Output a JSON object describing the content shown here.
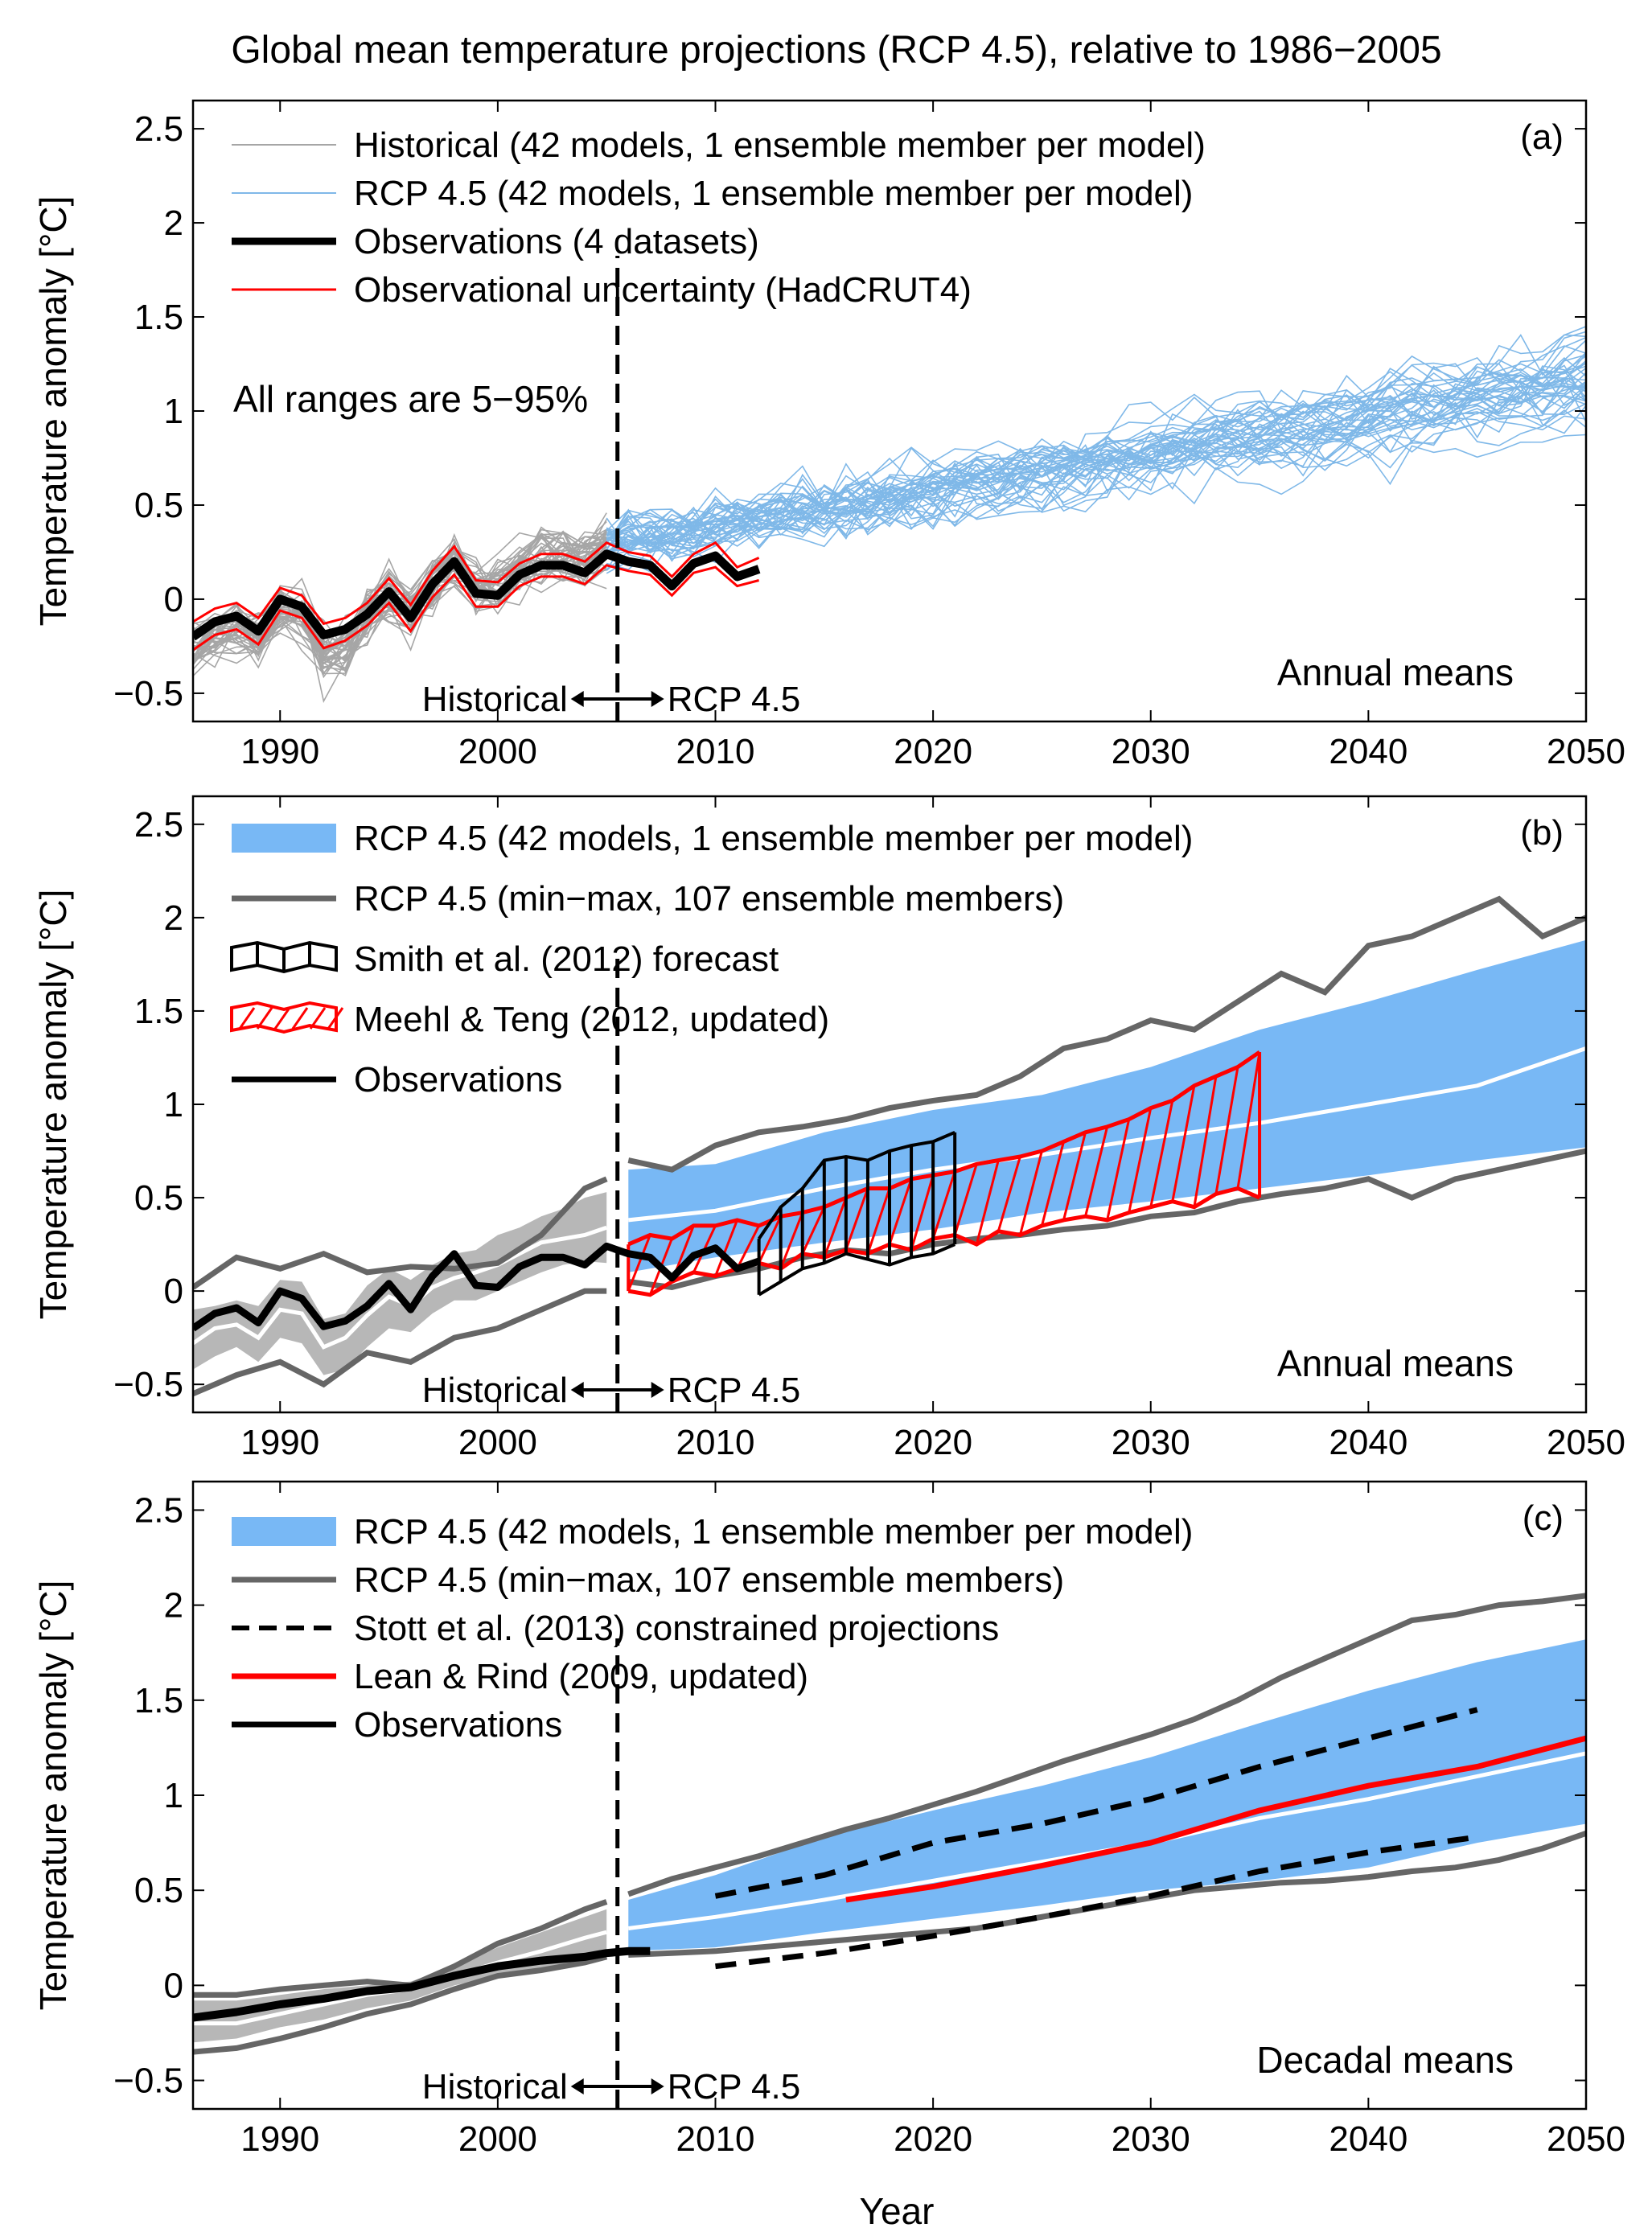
{
  "figure": {
    "title": "Global mean temperature projections (RCP 4.5), relative to 1986−2005",
    "xlabel": "Year"
  },
  "colors": {
    "historical_model": "#a6a6a6",
    "rcp_model": "#7fb8e8",
    "rcp_band": "#78b8f5",
    "hist_band": "#b7b7b7",
    "minmax": "#666666",
    "observations": "#000000",
    "obs_uncertainty": "#ff0000",
    "meehl": "#ff0000",
    "smith": "#000000",
    "lean_rind": "#ff0000",
    "median": "#ffffff"
  },
  "chart_data": [
    {
      "id": "a",
      "type": "line",
      "panel_label": "(a)",
      "ylabel": "Temperature anomaly  [°C]",
      "xlim": [
        1986,
        2050
      ],
      "ylim": [
        -0.65,
        2.65
      ],
      "x_ticks": [
        1990,
        2000,
        2010,
        2020,
        2030,
        2040,
        2050
      ],
      "y_ticks": [
        -0.5,
        0,
        0.5,
        1,
        1.5,
        2,
        2.5
      ],
      "y_tick_labels": [
        "−0.5",
        "0",
        "0.5",
        "1",
        "1.5",
        "2",
        "2.5"
      ],
      "legend": [
        {
          "label": "Historical (42 models, 1 ensemble member per model)",
          "style": "hist-thin"
        },
        {
          "label": "RCP 4.5 (42 models, 1 ensemble member per model)",
          "style": "rcp-thin"
        },
        {
          "label": "Observations (4 datasets)",
          "style": "obs-thick"
        },
        {
          "label": "Observational uncertainty (HadCRUT4)",
          "style": "red-thin"
        }
      ],
      "legend_position": "top-left",
      "note": "All ranges are 5−95%",
      "corner_label": "Annual means",
      "divider": {
        "year": 2005.5,
        "left_label": "Historical",
        "right_label": "RCP 4.5"
      },
      "ensemble": {
        "historical_count": 42,
        "historical_years": [
          1986,
          2005
        ],
        "rcp_count": 42,
        "rcp_years": [
          2005,
          2050
        ]
      },
      "observations": {
        "years": [
          1986,
          1987,
          1988,
          1989,
          1990,
          1991,
          1992,
          1993,
          1994,
          1995,
          1996,
          1997,
          1998,
          1999,
          2000,
          2001,
          2002,
          2003,
          2004,
          2005,
          2006,
          2007,
          2008,
          2009,
          2010,
          2011,
          2012
        ],
        "values": [
          -0.2,
          -0.12,
          -0.09,
          -0.17,
          0.0,
          -0.04,
          -0.19,
          -0.16,
          -0.08,
          0.04,
          -0.1,
          0.08,
          0.2,
          0.03,
          0.02,
          0.13,
          0.18,
          0.18,
          0.14,
          0.24,
          0.2,
          0.18,
          0.07,
          0.19,
          0.23,
          0.12,
          0.16
        ]
      },
      "obs_uncertainty": {
        "upper": [
          -0.12,
          -0.05,
          -0.02,
          -0.1,
          0.06,
          0.02,
          -0.13,
          -0.1,
          -0.02,
          0.11,
          -0.03,
          0.15,
          0.28,
          0.1,
          0.09,
          0.19,
          0.24,
          0.24,
          0.2,
          0.3,
          0.25,
          0.23,
          0.12,
          0.24,
          0.3,
          0.17,
          0.22
        ],
        "lower": [
          -0.27,
          -0.19,
          -0.16,
          -0.24,
          -0.06,
          -0.1,
          -0.26,
          -0.22,
          -0.14,
          -0.02,
          -0.17,
          0.01,
          0.13,
          -0.04,
          -0.04,
          0.07,
          0.12,
          0.12,
          0.08,
          0.18,
          0.15,
          0.13,
          0.02,
          0.14,
          0.17,
          0.07,
          0.1
        ]
      }
    },
    {
      "id": "b",
      "type": "area",
      "panel_label": "(b)",
      "ylabel": "Temperature anomaly  [°C]",
      "xlim": [
        1986,
        2050
      ],
      "ylim": [
        -0.65,
        2.65
      ],
      "x_ticks": [
        1990,
        2000,
        2010,
        2020,
        2030,
        2040,
        2050
      ],
      "y_ticks": [
        -0.5,
        0,
        0.5,
        1,
        1.5,
        2,
        2.5
      ],
      "y_tick_labels": [
        "−0.5",
        "0",
        "0.5",
        "1",
        "1.5",
        "2",
        "2.5"
      ],
      "legend": [
        {
          "label": "RCP 4.5 (42 models, 1 ensemble member per model)",
          "style": "blue-band"
        },
        {
          "label": "RCP 4.5 (min−max, 107 ensemble members)",
          "style": "grey-thick"
        },
        {
          "label": "Smith et al. (2012) forecast",
          "style": "black-hatch"
        },
        {
          "label": "Meehl & Teng (2012, updated)",
          "style": "red-hatch"
        },
        {
          "label": "Observations",
          "style": "black-line"
        }
      ],
      "legend_position": "top-left",
      "corner_label": "Annual means",
      "divider": {
        "year": 2005.5,
        "left_label": "Historical",
        "right_label": "RCP 4.5"
      },
      "hist_band": {
        "years": [
          1986,
          1987,
          1988,
          1989,
          1990,
          1991,
          1992,
          1993,
          1994,
          1995,
          1996,
          1997,
          1998,
          1999,
          2000,
          2001,
          2002,
          2003,
          2004,
          2005
        ],
        "upper": [
          -0.1,
          -0.08,
          -0.05,
          -0.08,
          0.06,
          0.05,
          -0.15,
          -0.12,
          0.03,
          0.12,
          0.06,
          0.14,
          0.2,
          0.22,
          0.3,
          0.34,
          0.4,
          0.44,
          0.5,
          0.53
        ],
        "lower": [
          -0.42,
          -0.35,
          -0.3,
          -0.38,
          -0.25,
          -0.28,
          -0.45,
          -0.42,
          -0.3,
          -0.2,
          -0.22,
          -0.12,
          -0.05,
          -0.05,
          0.0,
          0.05,
          0.1,
          0.14,
          0.16,
          0.15
        ],
        "median": [
          -0.28,
          -0.2,
          -0.18,
          -0.25,
          -0.1,
          -0.12,
          -0.3,
          -0.25,
          -0.13,
          -0.03,
          -0.08,
          0.02,
          0.07,
          0.1,
          0.14,
          0.2,
          0.26,
          0.28,
          0.3,
          0.34
        ]
      },
      "rcp_band": {
        "years": [
          2006,
          2010,
          2015,
          2020,
          2025,
          2030,
          2035,
          2040,
          2045,
          2050
        ],
        "upper": [
          0.65,
          0.68,
          0.85,
          0.97,
          1.05,
          1.2,
          1.4,
          1.55,
          1.72,
          1.88
        ],
        "lower": [
          0.1,
          0.18,
          0.26,
          0.33,
          0.42,
          0.48,
          0.55,
          0.62,
          0.7,
          0.77
        ],
        "median": [
          0.38,
          0.43,
          0.55,
          0.65,
          0.73,
          0.82,
          0.9,
          1.0,
          1.1,
          1.3
        ]
      },
      "minmax": {
        "years": [
          1986,
          1988,
          1990,
          1992,
          1994,
          1996,
          1998,
          2000,
          2002,
          2004,
          2005,
          2006,
          2008,
          2010,
          2012,
          2014,
          2016,
          2018,
          2020,
          2022,
          2024,
          2026,
          2028,
          2030,
          2032,
          2034,
          2036,
          2038,
          2040,
          2042,
          2044,
          2046,
          2048,
          2050
        ],
        "upper": [
          0.02,
          0.18,
          0.12,
          0.2,
          0.1,
          0.13,
          0.12,
          0.15,
          0.3,
          0.55,
          0.6,
          0.7,
          0.65,
          0.78,
          0.85,
          0.88,
          0.92,
          0.98,
          1.02,
          1.05,
          1.15,
          1.3,
          1.35,
          1.45,
          1.4,
          1.55,
          1.7,
          1.6,
          1.85,
          1.9,
          2.0,
          2.1,
          1.9,
          2.0
        ],
        "lower": [
          -0.55,
          -0.45,
          -0.38,
          -0.5,
          -0.33,
          -0.38,
          -0.25,
          -0.2,
          -0.1,
          0.0,
          0.0,
          0.05,
          0.02,
          0.08,
          0.12,
          0.18,
          0.22,
          0.2,
          0.25,
          0.28,
          0.3,
          0.33,
          0.35,
          0.4,
          0.42,
          0.48,
          0.52,
          0.55,
          0.6,
          0.5,
          0.6,
          0.65,
          0.7,
          0.75
        ]
      },
      "observations": {
        "years": [
          1986,
          1987,
          1988,
          1989,
          1990,
          1991,
          1992,
          1993,
          1994,
          1995,
          1996,
          1997,
          1998,
          1999,
          2000,
          2001,
          2002,
          2003,
          2004,
          2005,
          2006,
          2007,
          2008,
          2009,
          2010,
          2011,
          2012
        ],
        "values": [
          -0.2,
          -0.12,
          -0.09,
          -0.17,
          0.0,
          -0.04,
          -0.19,
          -0.16,
          -0.08,
          0.04,
          -0.1,
          0.08,
          0.2,
          0.03,
          0.02,
          0.13,
          0.18,
          0.18,
          0.14,
          0.24,
          0.2,
          0.18,
          0.07,
          0.19,
          0.23,
          0.12,
          0.16
        ]
      },
      "smith": {
        "years": [
          2012,
          2013,
          2014,
          2015,
          2016,
          2017,
          2018,
          2019,
          2020,
          2021
        ],
        "upper": [
          0.28,
          0.45,
          0.55,
          0.7,
          0.72,
          0.7,
          0.75,
          0.78,
          0.8,
          0.85
        ],
        "lower": [
          -0.02,
          0.05,
          0.12,
          0.15,
          0.2,
          0.17,
          0.14,
          0.18,
          0.2,
          0.25
        ]
      },
      "meehl": {
        "years": [
          2006,
          2007,
          2008,
          2009,
          2010,
          2011,
          2012,
          2013,
          2014,
          2015,
          2016,
          2017,
          2018,
          2019,
          2020,
          2021,
          2022,
          2023,
          2024,
          2025,
          2026,
          2027,
          2028,
          2029,
          2030,
          2031,
          2032,
          2033,
          2034,
          2035
        ],
        "upper": [
          0.25,
          0.3,
          0.28,
          0.35,
          0.35,
          0.38,
          0.35,
          0.4,
          0.42,
          0.45,
          0.5,
          0.55,
          0.55,
          0.6,
          0.62,
          0.64,
          0.68,
          0.7,
          0.72,
          0.75,
          0.8,
          0.85,
          0.88,
          0.92,
          0.98,
          1.02,
          1.1,
          1.15,
          1.2,
          1.28
        ],
        "lower": [
          0.0,
          -0.02,
          0.05,
          0.1,
          0.08,
          0.12,
          0.15,
          0.12,
          0.2,
          0.18,
          0.22,
          0.2,
          0.25,
          0.22,
          0.28,
          0.3,
          0.25,
          0.32,
          0.3,
          0.35,
          0.38,
          0.4,
          0.38,
          0.42,
          0.45,
          0.48,
          0.45,
          0.52,
          0.55,
          0.5
        ]
      }
    },
    {
      "id": "c",
      "type": "area",
      "panel_label": "(c)",
      "ylabel": "Temperature anomaly  [°C]",
      "xlim": [
        1986,
        2050
      ],
      "ylim": [
        -0.65,
        2.65
      ],
      "x_ticks": [
        1990,
        2000,
        2010,
        2020,
        2030,
        2040,
        2050
      ],
      "y_ticks": [
        -0.5,
        0,
        0.5,
        1,
        1.5,
        2,
        2.5
      ],
      "y_tick_labels": [
        "−0.5",
        "0",
        "0.5",
        "1",
        "1.5",
        "2",
        "2.5"
      ],
      "legend": [
        {
          "label": "RCP 4.5 (42 models, 1 ensemble member per model)",
          "style": "blue-band"
        },
        {
          "label": "RCP 4.5 (min−max, 107 ensemble members)",
          "style": "grey-thick"
        },
        {
          "label": "Stott et al. (2013) constrained projections",
          "style": "black-dash"
        },
        {
          "label": "Lean & Rind (2009, updated)",
          "style": "red-line"
        },
        {
          "label": "Observations",
          "style": "black-line"
        }
      ],
      "legend_position": "top-left",
      "corner_label": "Decadal means",
      "divider": {
        "year": 2005.5,
        "left_label": "Historical",
        "right_label": "RCP 4.5"
      },
      "hist_band": {
        "years": [
          1986,
          1988,
          1990,
          1992,
          1994,
          1996,
          1998,
          2000,
          2002,
          2004,
          2005
        ],
        "upper": [
          -0.08,
          -0.08,
          -0.05,
          -0.02,
          0.0,
          0.02,
          0.1,
          0.2,
          0.28,
          0.36,
          0.4
        ],
        "lower": [
          -0.3,
          -0.28,
          -0.22,
          -0.18,
          -0.12,
          -0.08,
          0.0,
          0.05,
          0.08,
          0.14,
          0.16
        ],
        "median": [
          -0.2,
          -0.2,
          -0.15,
          -0.1,
          -0.05,
          -0.02,
          0.05,
          0.12,
          0.18,
          0.25,
          0.28
        ]
      },
      "rcp_band": {
        "years": [
          2006,
          2010,
          2015,
          2020,
          2025,
          2030,
          2035,
          2040,
          2045,
          2050
        ],
        "upper": [
          0.45,
          0.58,
          0.78,
          0.92,
          1.05,
          1.2,
          1.38,
          1.55,
          1.7,
          1.82
        ],
        "lower": [
          0.18,
          0.2,
          0.28,
          0.35,
          0.42,
          0.5,
          0.55,
          0.62,
          0.75,
          0.85
        ],
        "median": [
          0.3,
          0.36,
          0.45,
          0.55,
          0.65,
          0.75,
          0.88,
          0.98,
          1.1,
          1.22
        ]
      },
      "minmax": {
        "years": [
          1986,
          1988,
          1990,
          1992,
          1994,
          1996,
          1998,
          2000,
          2002,
          2004,
          2005,
          2006,
          2008,
          2010,
          2012,
          2014,
          2016,
          2018,
          2020,
          2022,
          2024,
          2026,
          2028,
          2030,
          2032,
          2034,
          2036,
          2038,
          2040,
          2042,
          2044,
          2046,
          2048,
          2050
        ],
        "upper": [
          -0.05,
          -0.05,
          -0.02,
          0.0,
          0.02,
          0.0,
          0.1,
          0.22,
          0.3,
          0.4,
          0.44,
          0.48,
          0.56,
          0.62,
          0.68,
          0.75,
          0.82,
          0.88,
          0.95,
          1.02,
          1.1,
          1.18,
          1.25,
          1.32,
          1.4,
          1.5,
          1.62,
          1.72,
          1.82,
          1.92,
          1.95,
          2.0,
          2.02,
          2.05
        ],
        "lower": [
          -0.35,
          -0.33,
          -0.28,
          -0.22,
          -0.15,
          -0.1,
          -0.02,
          0.05,
          0.08,
          0.12,
          0.15,
          0.16,
          0.17,
          0.18,
          0.2,
          0.22,
          0.24,
          0.26,
          0.28,
          0.3,
          0.34,
          0.38,
          0.42,
          0.46,
          0.5,
          0.52,
          0.54,
          0.55,
          0.57,
          0.6,
          0.62,
          0.66,
          0.72,
          0.8
        ]
      },
      "observations": {
        "years": [
          1986,
          1988,
          1990,
          1992,
          1994,
          1996,
          1998,
          2000,
          2002,
          2004,
          2005,
          2006,
          2007
        ],
        "values": [
          -0.17,
          -0.14,
          -0.1,
          -0.07,
          -0.03,
          -0.01,
          0.05,
          0.1,
          0.13,
          0.15,
          0.17,
          0.18,
          0.18
        ]
      },
      "stott_upper": {
        "years": [
          2010,
          2015,
          2020,
          2025,
          2030,
          2035,
          2040,
          2045
        ],
        "values": [
          0.47,
          0.58,
          0.75,
          0.85,
          0.98,
          1.15,
          1.3,
          1.45
        ]
      },
      "stott_lower": {
        "years": [
          2010,
          2015,
          2020,
          2025,
          2030,
          2035,
          2040,
          2045
        ],
        "values": [
          0.1,
          0.17,
          0.26,
          0.36,
          0.47,
          0.6,
          0.7,
          0.78
        ]
      },
      "lean_rind": {
        "years": [
          2016,
          2020,
          2025,
          2030,
          2035,
          2040,
          2045,
          2050
        ],
        "values": [
          0.45,
          0.52,
          0.63,
          0.75,
          0.92,
          1.05,
          1.15,
          1.3
        ]
      }
    }
  ]
}
